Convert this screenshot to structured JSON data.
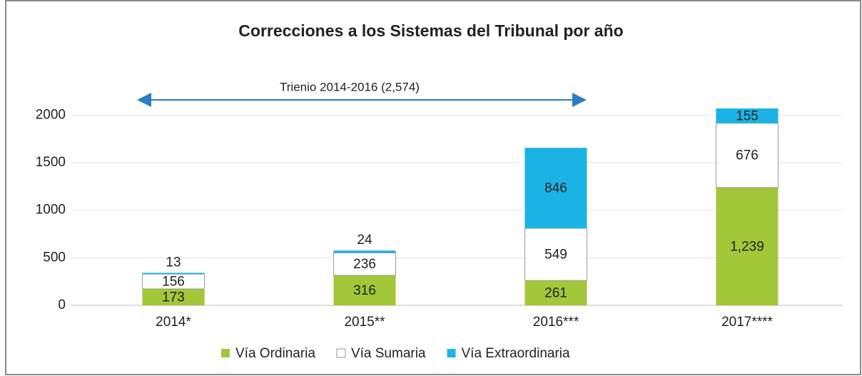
{
  "chart_data": {
    "type": "stacked_bar",
    "title": "Correcciones a los Sistemas del Tribunal por año",
    "annotation": "Trienio 2014-2016 (2,574)",
    "categories": [
      "2014*",
      "2015**",
      "2016***",
      "2017****"
    ],
    "series": [
      {
        "name": "Vía Ordinaria",
        "color": "#a2c739",
        "values": [
          173,
          316,
          261,
          1239
        ],
        "value_labels": [
          "173",
          "316",
          "261",
          "1,239"
        ]
      },
      {
        "name": "Vía Sumaria",
        "color": "#ffffff",
        "values": [
          156,
          236,
          549,
          676
        ]
      },
      {
        "name": "Vía Extraordinaria",
        "color": "#1bb3e6",
        "values": [
          13,
          24,
          846,
          155
        ]
      }
    ],
    "ylim": [
      0,
      2100
    ],
    "yticks": [
      0,
      500,
      1000,
      1500,
      2000
    ],
    "grid": true,
    "legend": "bottom"
  }
}
